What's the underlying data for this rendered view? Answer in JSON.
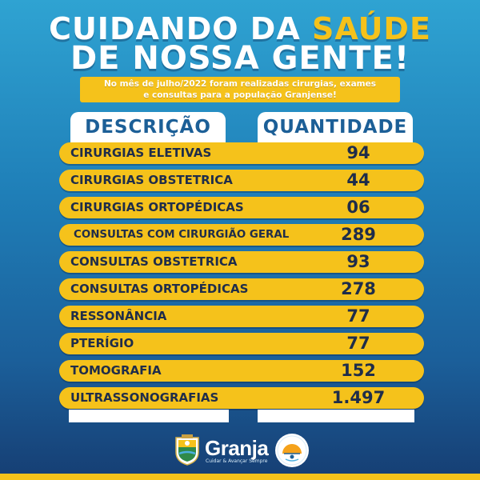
{
  "header": {
    "line1_a": "CUIDANDO DA ",
    "line1_b": "SAÚDE",
    "line2": "DE NOSSA GENTE!"
  },
  "banner": {
    "line1": "No mês de julho/2022 foram realizadas cirurgias, exames",
    "line2": "e consultas para a população Granjense!"
  },
  "table": {
    "col_description": "DESCRIÇÃO",
    "col_quantity": "QUANTIDADE",
    "rows": [
      {
        "description": "CIRURGIAS ELETIVAS",
        "quantity": "94"
      },
      {
        "description": "CIRURGIAS OBSTETRICA",
        "quantity": "44"
      },
      {
        "description": "CIRURGIAS ORTOPÉDICAS",
        "quantity": "06"
      },
      {
        "description": "CONSULTAS COM CIRURGIÃO GERAL",
        "quantity": "289"
      },
      {
        "description": "CONSULTAS OBSTETRICA",
        "quantity": "93"
      },
      {
        "description": "CONSULTAS ORTOPÉDICAS",
        "quantity": "278"
      },
      {
        "description": "RESSONÂNCIA",
        "quantity": "77"
      },
      {
        "description": "PTERÍGIO",
        "quantity": "77"
      },
      {
        "description": "TOMOGRAFIA",
        "quantity": "152"
      },
      {
        "description": "ULTRASSONOGRAFIAS",
        "quantity": "1.497"
      }
    ]
  },
  "footer": {
    "brand": "Granja",
    "brand_sub": "Cuidar & Avançar Sempre",
    "icons": [
      "crest-logo",
      "health-seal-logo"
    ]
  },
  "colors": {
    "accent": "#f5c21b",
    "text_dark": "#1f2d4a",
    "header_blue": "#1c5f97"
  }
}
